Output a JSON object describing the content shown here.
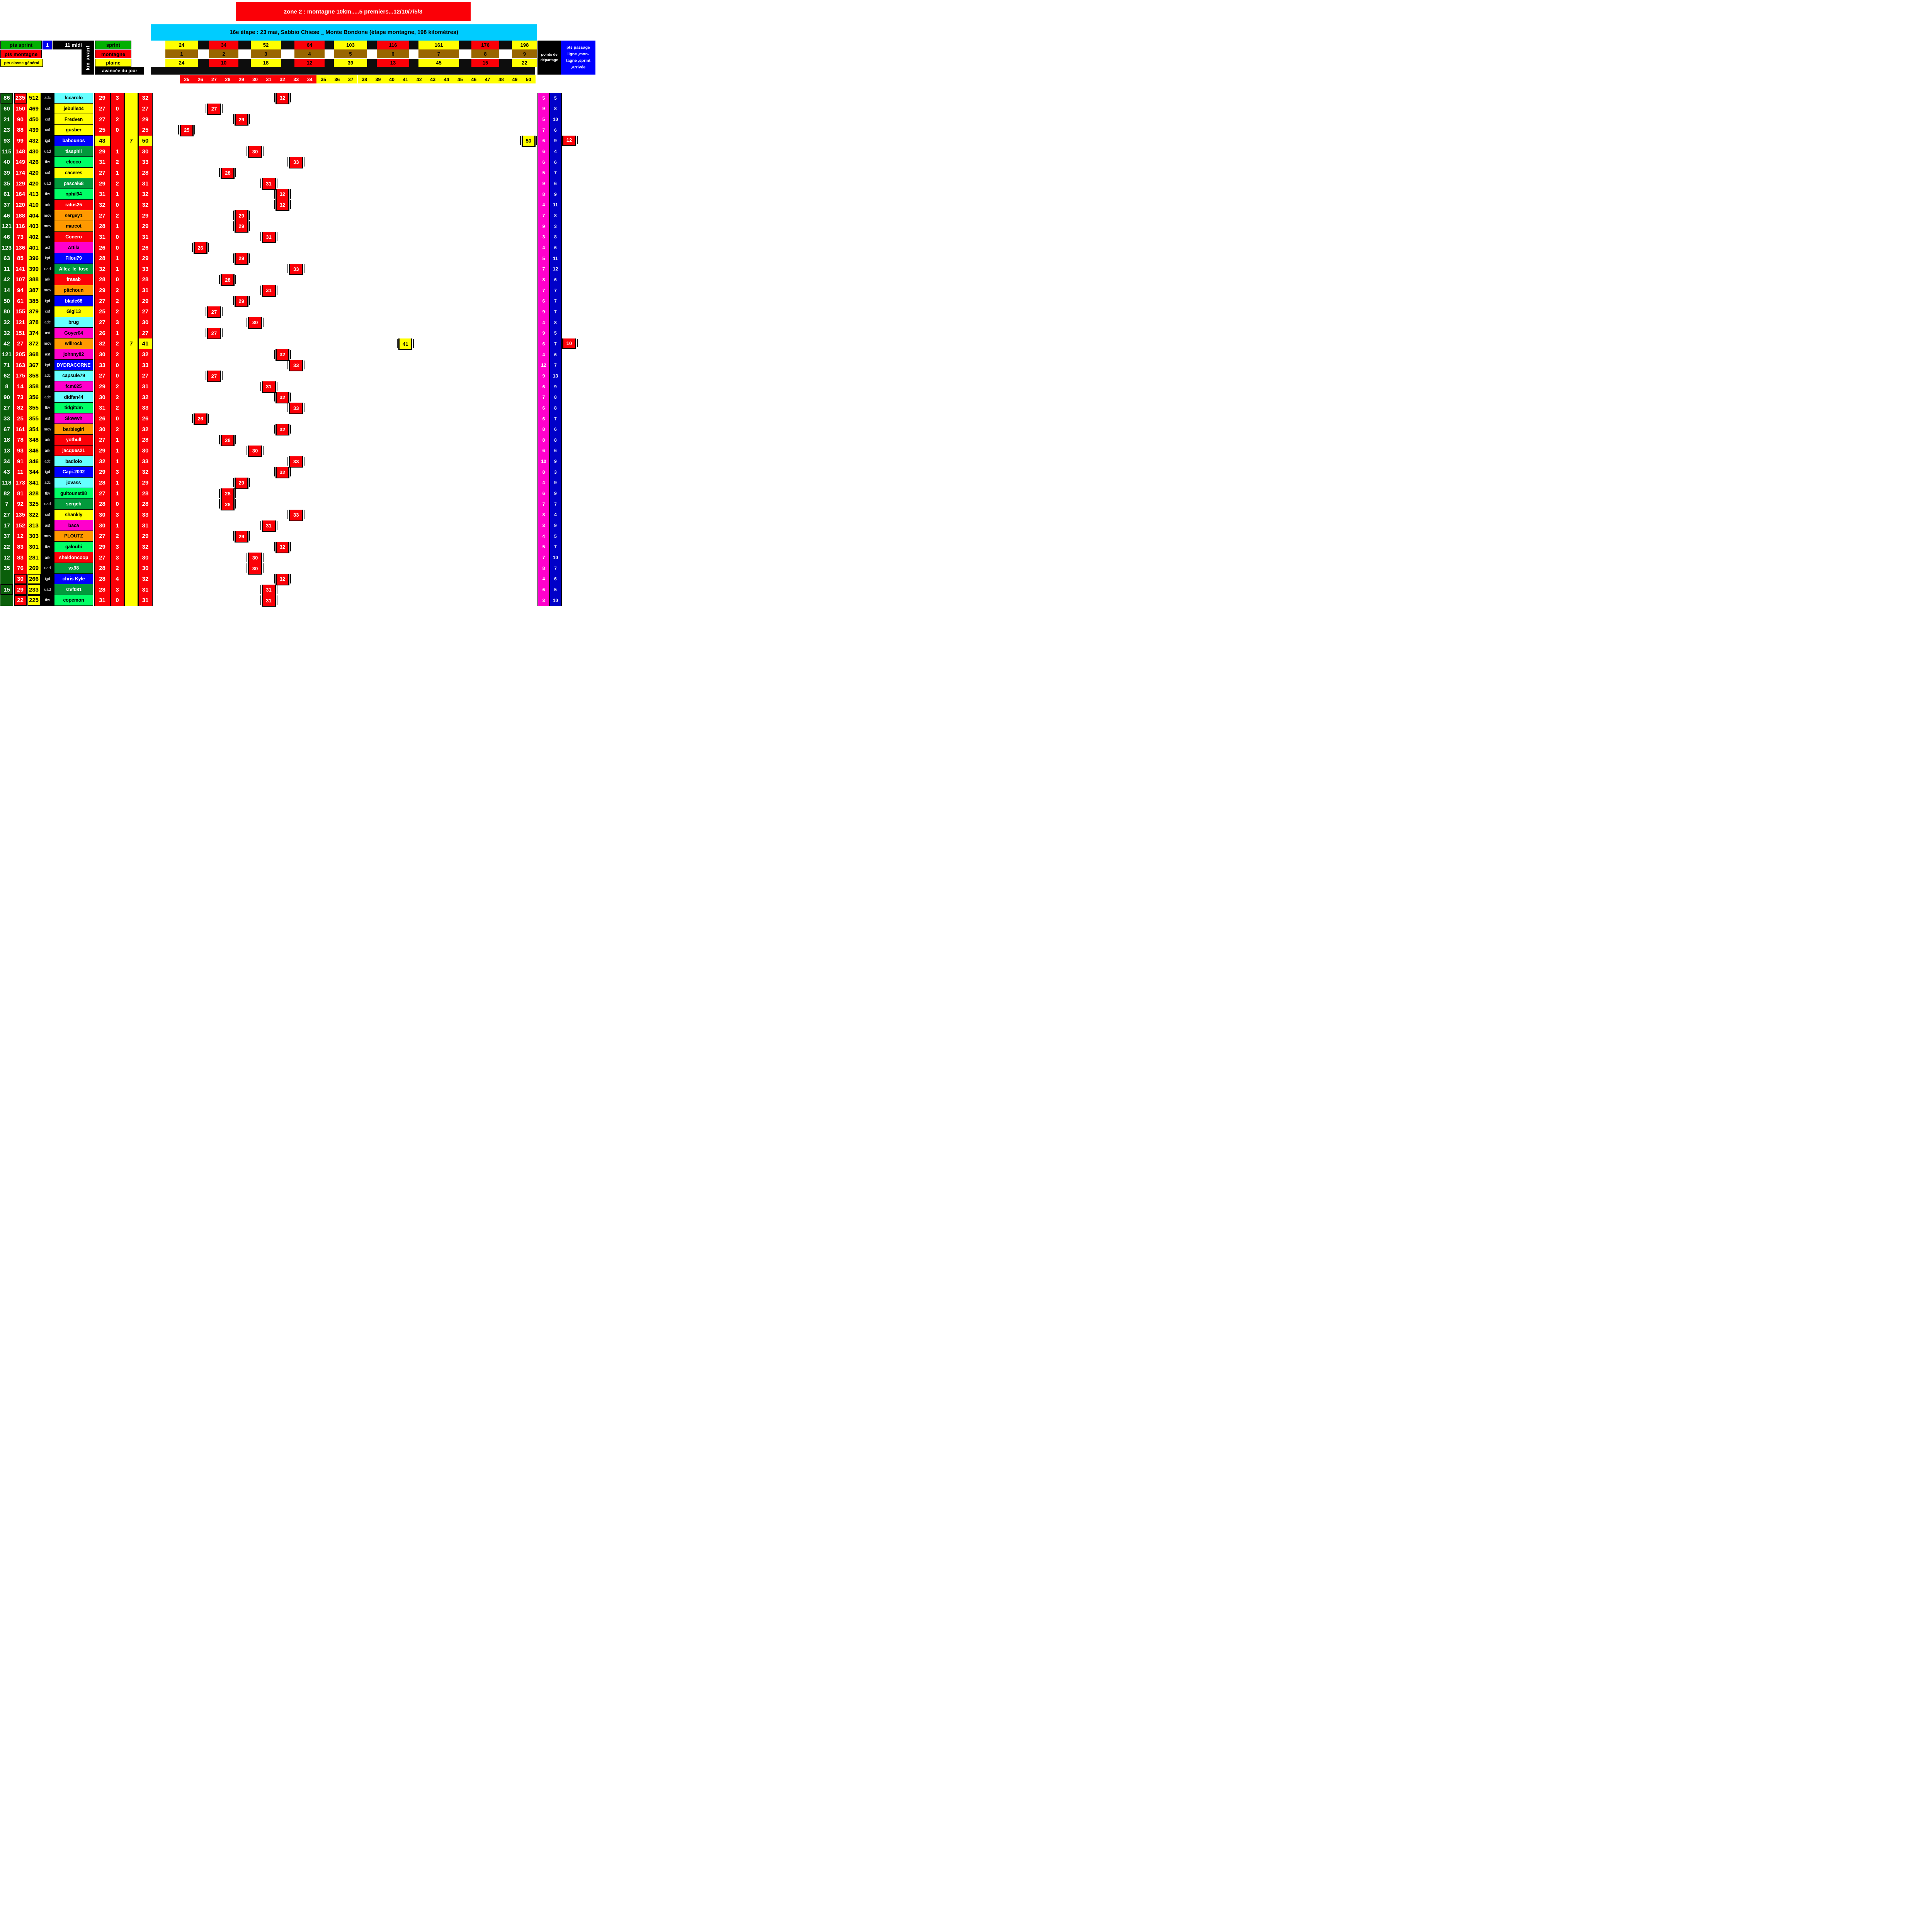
{
  "banners": {
    "zone": "zone 2 : montagne 10km.....5 premiers...12/10/7/5/3",
    "etape": "16e étape : 23 mai, Sabbio Chiese _ Monte Bondone (étape montagne, 198 kilomètres)"
  },
  "legend": {
    "pts_sprint": "pts sprint",
    "one": "1",
    "midi": "11 midi",
    "km_avant": "km avant",
    "pts_montagne": "pts montagne",
    "pts_classe_general": "pts classe général",
    "sprint": "sprint",
    "montagne": "montagne",
    "plaine": "plaine",
    "avancee_du_jour": "avancée du jour",
    "points_departage": "points de départage",
    "pts_passage_lines": [
      "pts passage",
      "ligne ,mon-",
      "tagne ,sprint",
      ",arrivée"
    ]
  },
  "route": {
    "cumulative_km": [
      "24",
      "34",
      "52",
      "64",
      "103",
      "116",
      "161",
      "176",
      "198"
    ],
    "checkpoint_index": [
      "1",
      "2",
      "3",
      "4",
      "5",
      "6",
      "7",
      "8",
      "9"
    ],
    "segment_km": [
      "24",
      "10",
      "18",
      "12",
      "39",
      "13",
      "45",
      "15",
      "22"
    ]
  },
  "scale": {
    "numbers": [
      25,
      26,
      27,
      28,
      29,
      30,
      31,
      32,
      33,
      34,
      35,
      36,
      37,
      38,
      39,
      40,
      41,
      42,
      43,
      44,
      45,
      46,
      47,
      48,
      49,
      50
    ],
    "red_max": 34
  },
  "colors": {
    "red": "#FB0007",
    "yellow": "#FFFF00",
    "green_header": "#00AF00",
    "dark_green_col": "#0A5F0A",
    "brown": "#996600",
    "cyan_banner": "#00CCFF",
    "magenta_col": "#FF00CC",
    "blue_col": "#0000C8",
    "blue_box": "#0000FF",
    "black": "#000000"
  },
  "team_colors": {
    "adc": {
      "bg": "#66FFFF",
      "fg": "#000000"
    },
    "cof": {
      "bg": "#FFFF00",
      "fg": "#000000"
    },
    "igd": {
      "bg": "#0000FF",
      "fg": "#FFFFFF"
    },
    "uad": {
      "bg": "#029A3C",
      "fg": "#FFFFFF"
    },
    "tbv": {
      "bg": "#00FF66",
      "fg": "#000000"
    },
    "ark": {
      "bg": "#FB0007",
      "fg": "#FFFFFF"
    },
    "mov": {
      "bg": "#FF9900",
      "fg": "#000000"
    },
    "ast": {
      "bg": "#FF00CC",
      "fg": "#000000"
    }
  },
  "riders": [
    {
      "sprint": "86",
      "mont": "235",
      "gen": "512",
      "team": "adc",
      "name": "fccarolo",
      "base": "29",
      "gain": "3",
      "bon": "",
      "total": 32,
      "pink": "5",
      "blue": "5",
      "extra": ""
    },
    {
      "sprint": "60",
      "mont": "150",
      "gen": "469",
      "team": "cof",
      "name": "jebulle44",
      "base": "27",
      "gain": "0",
      "bon": "",
      "total": 27,
      "pink": "9",
      "blue": "8",
      "extra": ""
    },
    {
      "sprint": "21",
      "mont": "90",
      "gen": "450",
      "team": "cof",
      "name": "Fredven",
      "base": "27",
      "gain": "2",
      "bon": "",
      "total": 29,
      "pink": "5",
      "blue": "10",
      "extra": ""
    },
    {
      "sprint": "23",
      "mont": "88",
      "gen": "439",
      "team": "cof",
      "name": "gusber",
      "base": "25",
      "gain": "0",
      "bon": "",
      "total": 25,
      "pink": "7",
      "blue": "6",
      "extra": ""
    },
    {
      "sprint": "93",
      "mont": "99",
      "gen": "432",
      "team": "igd",
      "name": "babounos",
      "base": "43",
      "gain": "",
      "bon": "7",
      "total": 50,
      "pink": "6",
      "blue": "9",
      "extra": "12"
    },
    {
      "sprint": "115",
      "mont": "148",
      "gen": "430",
      "team": "uad",
      "name": "tisaphil",
      "base": "29",
      "gain": "1",
      "bon": "",
      "total": 30,
      "pink": "6",
      "blue": "4",
      "extra": ""
    },
    {
      "sprint": "40",
      "mont": "149",
      "gen": "426",
      "team": "tbv",
      "name": "elcoco",
      "base": "31",
      "gain": "2",
      "bon": "",
      "total": 33,
      "pink": "6",
      "blue": "6",
      "extra": ""
    },
    {
      "sprint": "39",
      "mont": "174",
      "gen": "420",
      "team": "cof",
      "name": "caceres",
      "base": "27",
      "gain": "1",
      "bon": "",
      "total": 28,
      "pink": "5",
      "blue": "7",
      "extra": ""
    },
    {
      "sprint": "35",
      "mont": "129",
      "gen": "420",
      "team": "uad",
      "name": "pascal68",
      "base": "29",
      "gain": "2",
      "bon": "",
      "total": 31,
      "pink": "9",
      "blue": "6",
      "extra": ""
    },
    {
      "sprint": "61",
      "mont": "164",
      "gen": "413",
      "team": "tbv",
      "name": "nphil94",
      "base": "31",
      "gain": "1",
      "bon": "",
      "total": 32,
      "pink": "8",
      "blue": "9",
      "extra": ""
    },
    {
      "sprint": "37",
      "mont": "120",
      "gen": "410",
      "team": "ark",
      "name": "ratus25",
      "base": "32",
      "gain": "0",
      "bon": "",
      "total": 32,
      "pink": "4",
      "blue": "11",
      "extra": ""
    },
    {
      "sprint": "46",
      "mont": "188",
      "gen": "404",
      "team": "mov",
      "name": "sergey1",
      "base": "27",
      "gain": "2",
      "bon": "",
      "total": 29,
      "pink": "7",
      "blue": "8",
      "extra": ""
    },
    {
      "sprint": "121",
      "mont": "116",
      "gen": "403",
      "team": "mov",
      "name": "marcot",
      "base": "28",
      "gain": "1",
      "bon": "",
      "total": 29,
      "pink": "9",
      "blue": "3",
      "extra": ""
    },
    {
      "sprint": "46",
      "mont": "73",
      "gen": "402",
      "team": "ark",
      "name": "Conero",
      "base": "31",
      "gain": "0",
      "bon": "",
      "total": 31,
      "pink": "3",
      "blue": "8",
      "extra": ""
    },
    {
      "sprint": "123",
      "mont": "136",
      "gen": "401",
      "team": "ast",
      "name": "Attila",
      "base": "26",
      "gain": "0",
      "bon": "",
      "total": 26,
      "pink": "4",
      "blue": "6",
      "extra": ""
    },
    {
      "sprint": "63",
      "mont": "85",
      "gen": "396",
      "team": "igd",
      "name": "Filou79",
      "base": "28",
      "gain": "1",
      "bon": "",
      "total": 29,
      "pink": "5",
      "blue": "11",
      "extra": ""
    },
    {
      "sprint": "11",
      "mont": "141",
      "gen": "390",
      "team": "uad",
      "name": "Allez_le_losc",
      "base": "32",
      "gain": "1",
      "bon": "",
      "total": 33,
      "pink": "7",
      "blue": "12",
      "extra": ""
    },
    {
      "sprint": "42",
      "mont": "107",
      "gen": "388",
      "team": "ark",
      "name": "frasab",
      "base": "28",
      "gain": "0",
      "bon": "",
      "total": 28,
      "pink": "8",
      "blue": "6",
      "extra": ""
    },
    {
      "sprint": "14",
      "mont": "94",
      "gen": "387",
      "team": "mov",
      "name": "pitchoun",
      "base": "29",
      "gain": "2",
      "bon": "",
      "total": 31,
      "pink": "7",
      "blue": "7",
      "extra": ""
    },
    {
      "sprint": "50",
      "mont": "61",
      "gen": "385",
      "team": "igd",
      "name": "blade68",
      "base": "27",
      "gain": "2",
      "bon": "",
      "total": 29,
      "pink": "6",
      "blue": "7",
      "extra": ""
    },
    {
      "sprint": "80",
      "mont": "155",
      "gen": "379",
      "team": "cof",
      "name": "Gigi13",
      "base": "25",
      "gain": "2",
      "bon": "",
      "total": 27,
      "pink": "9",
      "blue": "7",
      "extra": ""
    },
    {
      "sprint": "32",
      "mont": "121",
      "gen": "378",
      "team": "adc",
      "name": "brug",
      "base": "27",
      "gain": "3",
      "bon": "",
      "total": 30,
      "pink": "4",
      "blue": "8",
      "extra": ""
    },
    {
      "sprint": "32",
      "mont": "151",
      "gen": "374",
      "team": "ast",
      "name": "Goyer04",
      "base": "26",
      "gain": "1",
      "bon": "",
      "total": 27,
      "pink": "9",
      "blue": "5",
      "extra": ""
    },
    {
      "sprint": "42",
      "mont": "27",
      "gen": "372",
      "team": "mov",
      "name": "willrock",
      "base": "32",
      "gain": "2",
      "bon": "7",
      "total": 41,
      "pink": "6",
      "blue": "7",
      "extra": "10"
    },
    {
      "sprint": "121",
      "mont": "205",
      "gen": "368",
      "team": "ast",
      "name": "johnny82",
      "base": "30",
      "gain": "2",
      "bon": "",
      "total": 32,
      "pink": "4",
      "blue": "6",
      "extra": ""
    },
    {
      "sprint": "71",
      "mont": "163",
      "gen": "367",
      "team": "igd",
      "name": "DYDRACORNE",
      "base": "33",
      "gain": "0",
      "bon": "",
      "total": 33,
      "pink": "12",
      "blue": "7",
      "extra": ""
    },
    {
      "sprint": "62",
      "mont": "175",
      "gen": "358",
      "team": "adc",
      "name": "capsule79",
      "base": "27",
      "gain": "0",
      "bon": "",
      "total": 27,
      "pink": "9",
      "blue": "13",
      "extra": ""
    },
    {
      "sprint": "8",
      "mont": "14",
      "gen": "358",
      "team": "ast",
      "name": "fcm025",
      "base": "29",
      "gain": "2",
      "bon": "",
      "total": 31,
      "pink": "6",
      "blue": "9",
      "extra": ""
    },
    {
      "sprint": "90",
      "mont": "73",
      "gen": "356",
      "team": "adc",
      "name": "didfan44",
      "base": "30",
      "gain": "2",
      "bon": "",
      "total": 32,
      "pink": "7",
      "blue": "8",
      "extra": ""
    },
    {
      "sprint": "27",
      "mont": "82",
      "gen": "355",
      "team": "tbv",
      "name": "tidgitdm",
      "base": "31",
      "gain": "2",
      "bon": "",
      "total": 33,
      "pink": "6",
      "blue": "8",
      "extra": ""
    },
    {
      "sprint": "33",
      "mont": "25",
      "gen": "355",
      "team": "ast",
      "name": "Slowwh",
      "base": "26",
      "gain": "0",
      "bon": "",
      "total": 26,
      "pink": "6",
      "blue": "7",
      "extra": ""
    },
    {
      "sprint": "67",
      "mont": "161",
      "gen": "354",
      "team": "mov",
      "name": "barbiegirl",
      "base": "30",
      "gain": "2",
      "bon": "",
      "total": 32,
      "pink": "8",
      "blue": "6",
      "extra": ""
    },
    {
      "sprint": "18",
      "mont": "78",
      "gen": "348",
      "team": "ark",
      "name": "yotbull",
      "base": "27",
      "gain": "1",
      "bon": "",
      "total": 28,
      "pink": "8",
      "blue": "8",
      "extra": ""
    },
    {
      "sprint": "13",
      "mont": "93",
      "gen": "346",
      "team": "ark",
      "name": "jacques21",
      "base": "29",
      "gain": "1",
      "bon": "",
      "total": 30,
      "pink": "6",
      "blue": "6",
      "extra": ""
    },
    {
      "sprint": "34",
      "mont": "91",
      "gen": "346",
      "team": "adc",
      "name": "badlolo",
      "base": "32",
      "gain": "1",
      "bon": "",
      "total": 33,
      "pink": "10",
      "blue": "9",
      "extra": ""
    },
    {
      "sprint": "43",
      "mont": "11",
      "gen": "344",
      "team": "igd",
      "name": "Capi-2002",
      "base": "29",
      "gain": "3",
      "bon": "",
      "total": 32,
      "pink": "8",
      "blue": "3",
      "extra": ""
    },
    {
      "sprint": "118",
      "mont": "173",
      "gen": "341",
      "team": "adc",
      "name": "jovass",
      "base": "28",
      "gain": "1",
      "bon": "",
      "total": 29,
      "pink": "4",
      "blue": "9",
      "extra": ""
    },
    {
      "sprint": "82",
      "mont": "81",
      "gen": "328",
      "team": "tbv",
      "name": "guitounet88",
      "base": "27",
      "gain": "1",
      "bon": "",
      "total": 28,
      "pink": "6",
      "blue": "9",
      "extra": ""
    },
    {
      "sprint": "7",
      "mont": "92",
      "gen": "325",
      "team": "uad",
      "name": "sergeb",
      "base": "28",
      "gain": "0",
      "bon": "",
      "total": 28,
      "pink": "7",
      "blue": "7",
      "extra": ""
    },
    {
      "sprint": "27",
      "mont": "135",
      "gen": "322",
      "team": "cof",
      "name": "shankly",
      "base": "30",
      "gain": "3",
      "bon": "",
      "total": 33,
      "pink": "8",
      "blue": "4",
      "extra": ""
    },
    {
      "sprint": "17",
      "mont": "152",
      "gen": "313",
      "team": "ast",
      "name": "baca",
      "base": "30",
      "gain": "1",
      "bon": "",
      "total": 31,
      "pink": "3",
      "blue": "9",
      "extra": ""
    },
    {
      "sprint": "37",
      "mont": "12",
      "gen": "303",
      "team": "mov",
      "name": "PLOUTZ",
      "base": "27",
      "gain": "2",
      "bon": "",
      "total": 29,
      "pink": "4",
      "blue": "5",
      "extra": ""
    },
    {
      "sprint": "22",
      "mont": "83",
      "gen": "301",
      "team": "tbv",
      "name": "galoubi",
      "base": "29",
      "gain": "3",
      "bon": "",
      "total": 32,
      "pink": "5",
      "blue": "7",
      "extra": ""
    },
    {
      "sprint": "12",
      "mont": "83",
      "gen": "281",
      "team": "ark",
      "name": "sheldoncoop",
      "base": "27",
      "gain": "3",
      "bon": "",
      "total": 30,
      "pink": "7",
      "blue": "10",
      "extra": ""
    },
    {
      "sprint": "35",
      "mont": "76",
      "gen": "269",
      "team": "uad",
      "name": "vx98",
      "base": "28",
      "gain": "2",
      "bon": "",
      "total": 30,
      "pink": "8",
      "blue": "7",
      "extra": ""
    },
    {
      "sprint": "",
      "mont": "30",
      "gen": "266",
      "team": "igd",
      "name": "chris Kyle",
      "base": "28",
      "gain": "4",
      "bon": "",
      "total": 32,
      "pink": "4",
      "blue": "6",
      "extra": ""
    },
    {
      "sprint": "15",
      "mont": "29",
      "gen": "233",
      "team": "uad",
      "name": "stef081",
      "base": "28",
      "gain": "3",
      "bon": "",
      "total": 31,
      "pink": "6",
      "blue": "5",
      "extra": ""
    },
    {
      "sprint": "",
      "mont": "22",
      "gen": "225",
      "team": "tbv",
      "name": "copemon",
      "base": "31",
      "gain": "0",
      "bon": "",
      "total": 31,
      "pink": "3",
      "blue": "10",
      "extra": ""
    }
  ]
}
